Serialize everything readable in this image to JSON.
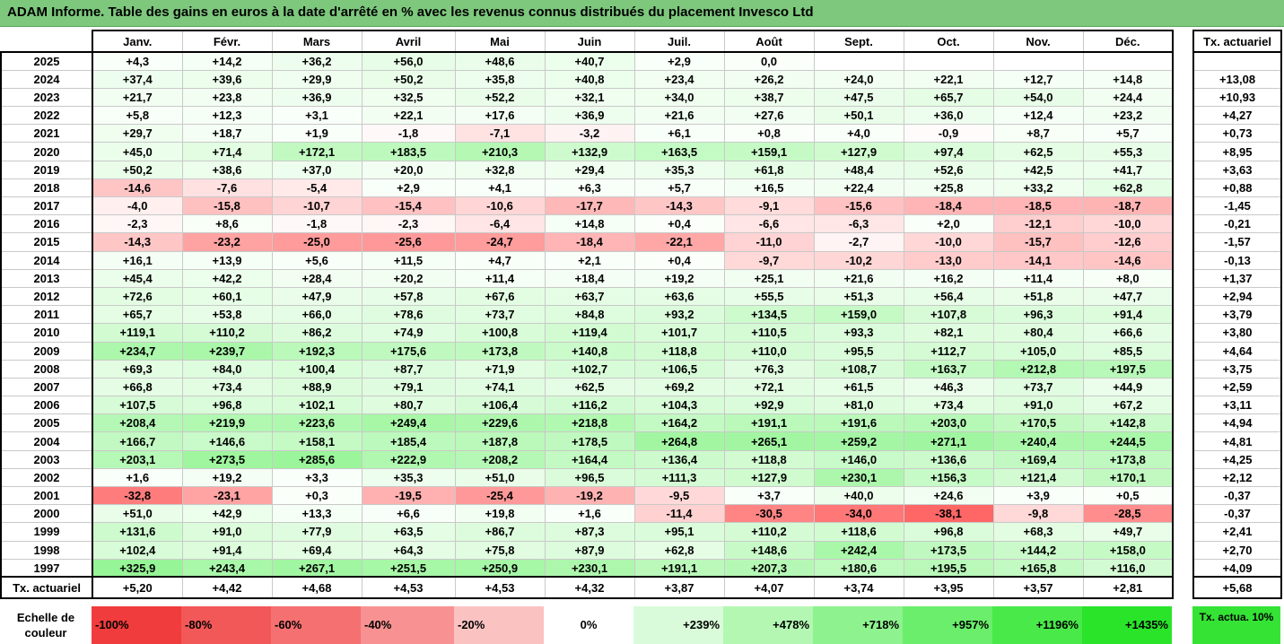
{
  "title": "ADAM Informe. Table des gains en euros à la date d'arrêté en % avec les revenus connus distribués du placement Invesco Ltd",
  "months": [
    "Janv.",
    "Févr.",
    "Mars",
    "Avril",
    "Mai",
    "Juin",
    "Juil.",
    "Août",
    "Sept.",
    "Oct.",
    "Nov.",
    "Déc."
  ],
  "tx_header": "Tx. actuariel",
  "rows": [
    {
      "year": "2025",
      "values": [
        "+4,3",
        "+14,2",
        "+36,2",
        "+56,0",
        "+48,6",
        "+40,7",
        "+2,9",
        "0,0",
        "",
        "",
        "",
        ""
      ],
      "tx": ""
    },
    {
      "year": "2024",
      "values": [
        "+37,4",
        "+39,6",
        "+29,9",
        "+50,2",
        "+35,8",
        "+40,8",
        "+23,4",
        "+26,2",
        "+24,0",
        "+22,1",
        "+12,7",
        "+14,8"
      ],
      "tx": "+13,08"
    },
    {
      "year": "2023",
      "values": [
        "+21,7",
        "+23,8",
        "+36,9",
        "+32,5",
        "+52,2",
        "+32,1",
        "+34,0",
        "+38,7",
        "+47,5",
        "+65,7",
        "+54,0",
        "+24,4"
      ],
      "tx": "+10,93"
    },
    {
      "year": "2022",
      "values": [
        "+5,8",
        "+12,3",
        "+3,1",
        "+22,1",
        "+17,6",
        "+36,9",
        "+21,6",
        "+27,6",
        "+50,1",
        "+36,0",
        "+12,4",
        "+23,2"
      ],
      "tx": "+4,27"
    },
    {
      "year": "2021",
      "values": [
        "+29,7",
        "+18,7",
        "+1,9",
        "-1,8",
        "-7,1",
        "-3,2",
        "+6,1",
        "+0,8",
        "+4,0",
        "-0,9",
        "+8,7",
        "+5,7"
      ],
      "tx": "+0,73"
    },
    {
      "year": "2020",
      "values": [
        "+45,0",
        "+71,4",
        "+172,1",
        "+183,5",
        "+210,3",
        "+132,9",
        "+163,5",
        "+159,1",
        "+127,9",
        "+97,4",
        "+62,5",
        "+55,3"
      ],
      "tx": "+8,95"
    },
    {
      "year": "2019",
      "values": [
        "+50,2",
        "+38,6",
        "+37,0",
        "+20,0",
        "+32,8",
        "+29,4",
        "+35,3",
        "+61,8",
        "+48,4",
        "+52,6",
        "+42,5",
        "+41,7"
      ],
      "tx": "+3,63"
    },
    {
      "year": "2018",
      "values": [
        "-14,6",
        "-7,6",
        "-5,4",
        "+2,9",
        "+4,1",
        "+6,3",
        "+5,7",
        "+16,5",
        "+22,4",
        "+25,8",
        "+33,2",
        "+62,8"
      ],
      "tx": "+0,88"
    },
    {
      "year": "2017",
      "values": [
        "-4,0",
        "-15,8",
        "-10,7",
        "-15,4",
        "-10,6",
        "-17,7",
        "-14,3",
        "-9,1",
        "-15,6",
        "-18,4",
        "-18,5",
        "-18,7"
      ],
      "tx": "-1,45"
    },
    {
      "year": "2016",
      "values": [
        "-2,3",
        "+8,6",
        "-1,8",
        "-2,3",
        "-6,4",
        "+14,8",
        "+0,4",
        "-6,6",
        "-6,3",
        "+2,0",
        "-12,1",
        "-10,0"
      ],
      "tx": "-0,21"
    },
    {
      "year": "2015",
      "values": [
        "-14,3",
        "-23,2",
        "-25,0",
        "-25,6",
        "-24,7",
        "-18,4",
        "-22,1",
        "-11,0",
        "-2,7",
        "-10,0",
        "-15,7",
        "-12,6"
      ],
      "tx": "-1,57"
    },
    {
      "year": "2014",
      "values": [
        "+16,1",
        "+13,9",
        "+5,6",
        "+11,5",
        "+4,7",
        "+2,1",
        "+0,4",
        "-9,7",
        "-10,2",
        "-13,0",
        "-14,1",
        "-14,6"
      ],
      "tx": "-0,13"
    },
    {
      "year": "2013",
      "values": [
        "+45,4",
        "+42,2",
        "+28,4",
        "+20,2",
        "+11,4",
        "+18,4",
        "+19,2",
        "+25,1",
        "+21,6",
        "+16,2",
        "+11,4",
        "+8,0"
      ],
      "tx": "+1,37"
    },
    {
      "year": "2012",
      "values": [
        "+72,6",
        "+60,1",
        "+47,9",
        "+57,8",
        "+67,6",
        "+63,7",
        "+63,6",
        "+55,5",
        "+51,3",
        "+56,4",
        "+51,8",
        "+47,7"
      ],
      "tx": "+2,94"
    },
    {
      "year": "2011",
      "values": [
        "+65,7",
        "+53,8",
        "+66,0",
        "+78,6",
        "+73,7",
        "+84,8",
        "+93,2",
        "+134,5",
        "+159,0",
        "+107,8",
        "+96,3",
        "+91,4"
      ],
      "tx": "+3,79"
    },
    {
      "year": "2010",
      "values": [
        "+119,1",
        "+110,2",
        "+86,2",
        "+74,9",
        "+100,8",
        "+119,4",
        "+101,7",
        "+110,5",
        "+93,3",
        "+82,1",
        "+80,4",
        "+66,6"
      ],
      "tx": "+3,80"
    },
    {
      "year": "2009",
      "values": [
        "+234,7",
        "+239,7",
        "+192,3",
        "+175,6",
        "+173,8",
        "+140,8",
        "+118,8",
        "+110,0",
        "+95,5",
        "+112,7",
        "+105,0",
        "+85,5"
      ],
      "tx": "+4,64"
    },
    {
      "year": "2008",
      "values": [
        "+69,3",
        "+84,0",
        "+100,4",
        "+87,7",
        "+71,9",
        "+102,7",
        "+106,5",
        "+76,3",
        "+108,7",
        "+163,7",
        "+212,8",
        "+197,5"
      ],
      "tx": "+3,75"
    },
    {
      "year": "2007",
      "values": [
        "+66,8",
        "+73,4",
        "+88,9",
        "+79,1",
        "+74,1",
        "+62,5",
        "+69,2",
        "+72,1",
        "+61,5",
        "+46,3",
        "+73,7",
        "+44,9"
      ],
      "tx": "+2,59"
    },
    {
      "year": "2006",
      "values": [
        "+107,5",
        "+96,8",
        "+102,1",
        "+80,7",
        "+106,4",
        "+116,2",
        "+104,3",
        "+92,9",
        "+81,0",
        "+73,4",
        "+91,0",
        "+67,2"
      ],
      "tx": "+3,11"
    },
    {
      "year": "2005",
      "values": [
        "+208,4",
        "+219,9",
        "+223,6",
        "+249,4",
        "+229,6",
        "+218,8",
        "+164,2",
        "+191,1",
        "+191,6",
        "+203,0",
        "+170,5",
        "+142,8"
      ],
      "tx": "+4,94"
    },
    {
      "year": "2004",
      "values": [
        "+166,7",
        "+146,6",
        "+158,1",
        "+185,4",
        "+187,8",
        "+178,5",
        "+264,8",
        "+265,1",
        "+259,2",
        "+271,1",
        "+240,4",
        "+244,5"
      ],
      "tx": "+4,81"
    },
    {
      "year": "2003",
      "values": [
        "+203,1",
        "+273,5",
        "+285,6",
        "+222,9",
        "+208,2",
        "+164,4",
        "+136,4",
        "+118,8",
        "+146,0",
        "+136,6",
        "+169,4",
        "+173,8"
      ],
      "tx": "+4,25"
    },
    {
      "year": "2002",
      "values": [
        "+1,6",
        "+19,2",
        "+3,3",
        "+35,3",
        "+51,0",
        "+96,5",
        "+111,3",
        "+127,9",
        "+230,1",
        "+156,3",
        "+121,4",
        "+170,1"
      ],
      "tx": "+2,12"
    },
    {
      "year": "2001",
      "values": [
        "-32,8",
        "-23,1",
        "+0,3",
        "-19,5",
        "-25,4",
        "-19,2",
        "-9,5",
        "+3,7",
        "+40,0",
        "+24,6",
        "+3,9",
        "+0,5"
      ],
      "tx": "-0,37"
    },
    {
      "year": "2000",
      "values": [
        "+51,0",
        "+42,9",
        "+13,3",
        "+6,6",
        "+19,8",
        "+1,6",
        "-11,4",
        "-30,5",
        "-34,0",
        "-38,1",
        "-9,8",
        "-28,5"
      ],
      "tx": "-0,37"
    },
    {
      "year": "1999",
      "values": [
        "+131,6",
        "+91,0",
        "+77,9",
        "+63,5",
        "+86,7",
        "+87,3",
        "+95,1",
        "+110,2",
        "+118,6",
        "+96,8",
        "+68,3",
        "+49,7"
      ],
      "tx": "+2,41"
    },
    {
      "year": "1998",
      "values": [
        "+102,4",
        "+91,4",
        "+69,4",
        "+64,3",
        "+75,8",
        "+87,9",
        "+62,8",
        "+148,6",
        "+242,4",
        "+173,5",
        "+144,2",
        "+158,0"
      ],
      "tx": "+2,70"
    },
    {
      "year": "1997",
      "values": [
        "+325,9",
        "+243,4",
        "+267,1",
        "+251,5",
        "+250,9",
        "+230,1",
        "+191,1",
        "+207,3",
        "+180,6",
        "+195,5",
        "+165,8",
        "+116,0"
      ],
      "tx": "+4,09"
    }
  ],
  "footer": {
    "label": "Tx. actuariel",
    "values": [
      "+5,20",
      "+4,42",
      "+4,68",
      "+4,53",
      "+4,53",
      "+4,32",
      "+3,87",
      "+4,07",
      "+3,74",
      "+3,95",
      "+3,57",
      "+2,81"
    ],
    "tx": "+5,68"
  },
  "scale": {
    "label": "Echelle de couleur",
    "items": [
      {
        "text": "-100%",
        "color": "#f03c3c",
        "align": "left"
      },
      {
        "text": "-80%",
        "color": "#f35858",
        "align": "left"
      },
      {
        "text": "-60%",
        "color": "#f57070",
        "align": "left"
      },
      {
        "text": "-40%",
        "color": "#f89292",
        "align": "left"
      },
      {
        "text": "-20%",
        "color": "#fbc2c2",
        "align": "left"
      },
      {
        "text": "0%",
        "color": "#ffffff",
        "align": "center"
      },
      {
        "text": "+239%",
        "color": "#d9fbd9",
        "align": "right"
      },
      {
        "text": "+478%",
        "color": "#b3f7b3",
        "align": "right"
      },
      {
        "text": "+718%",
        "color": "#8ef28e",
        "align": "right"
      },
      {
        "text": "+957%",
        "color": "#6bee6b",
        "align": "right"
      },
      {
        "text": "+1196%",
        "color": "#48e948",
        "align": "right"
      },
      {
        "text": "+1435%",
        "color": "#29e429",
        "align": "right"
      }
    ],
    "tx_text": "Tx. actua. 10%",
    "tx_color": "#35e335"
  },
  "colors": {
    "title_bg": "#7dc87d",
    "positive": "#22dd22",
    "negative": "#ee3333"
  }
}
